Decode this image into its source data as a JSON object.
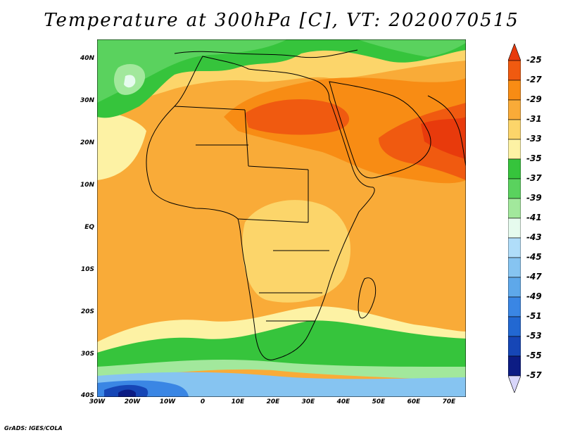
{
  "title": "Temperature at 300hPa [C], VT: 2020070515",
  "footer": "GrADS: IGES/COLA",
  "map": {
    "lat_labels": [
      "40N",
      "30N",
      "20N",
      "10N",
      "EQ",
      "10S",
      "20S",
      "30S",
      "40S"
    ],
    "lon_labels": [
      "30W",
      "20W",
      "10W",
      "0",
      "10E",
      "20E",
      "30E",
      "40E",
      "50E",
      "60E",
      "70E"
    ]
  },
  "legend": {
    "levels": [
      "-25",
      "-27",
      "-29",
      "-31",
      "-33",
      "-35",
      "-37",
      "-39",
      "-41",
      "-43",
      "-45",
      "-47",
      "-49",
      "-51",
      "-53",
      "-55",
      "-57"
    ],
    "colors": [
      "#e83a0c",
      "#f05a10",
      "#f88c14",
      "#f9ab38",
      "#fcd56a",
      "#fdf2a4",
      "#36c43c",
      "#5ad25e",
      "#a2e89c",
      "#e6fbee",
      "#b0ddf9",
      "#86c4f1",
      "#5ea8ea",
      "#3a86e4",
      "#2268d2",
      "#1646b6",
      "#0c1c84",
      "#d8d6fa"
    ]
  }
}
